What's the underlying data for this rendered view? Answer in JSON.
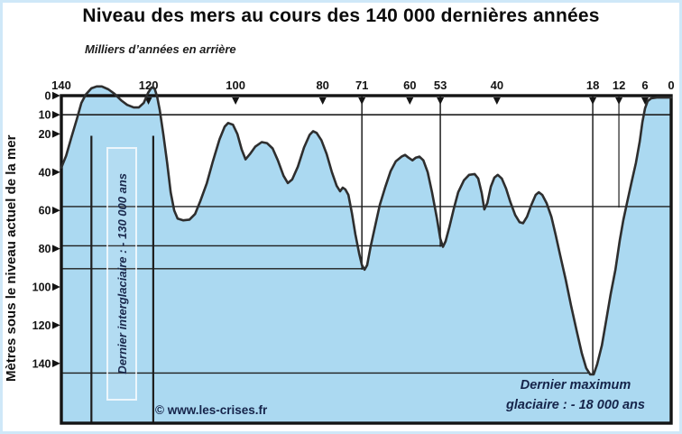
{
  "title": "Niveau des mers au cours des 140 000 dernières années",
  "axis_top": {
    "label": "Milliers d’années en arrière"
  },
  "axis_left": {
    "label": "Mètres sous le niveau actuel de la mer"
  },
  "annotations": {
    "interglacial": "Dernier interglaciaire : - 130 000 ans",
    "glacial_line1": "Dernier maximum",
    "glacial_line2": "glaciaire : - 18 000 ans",
    "copyright": "© www.les-crises.fr"
  },
  "colors": {
    "area_fill": "#abd9f1",
    "curve": "#2e2e2e",
    "frame": "#141414",
    "reference_line": "#1e1e1e",
    "tick": "#141414",
    "label": "#141414",
    "annotation_text": "#1b2a4e",
    "canvas_border": "#cfe8f8",
    "background": "#ffffff"
  },
  "chart_data": {
    "type": "area",
    "title": "Niveau des mers au cours des 140 000 dernières années",
    "xlabel": "Milliers d’années en arrière",
    "ylabel": "Mètres sous le niveau actuel de la mer",
    "x_unit": "milliers d'années avant le présent (ka)",
    "y_unit": "mètres par rapport au niveau actuel",
    "xlim": [
      140,
      0
    ],
    "ylim": [
      -171,
      9
    ],
    "legend": "none",
    "grid": "reference lines only",
    "x_ticks": [
      140,
      120,
      100,
      80,
      71,
      60,
      53,
      40,
      18,
      12,
      6,
      0
    ],
    "x_tick_marks": [
      120,
      100,
      80,
      71,
      60,
      53,
      40,
      18,
      12,
      6
    ],
    "y_ticks": [
      0,
      10,
      20,
      40,
      60,
      80,
      100,
      120,
      140
    ],
    "key_events": [
      {
        "name": "Dernier interglaciaire",
        "ka": 130,
        "level_m": 5
      },
      {
        "name": "Dernier maximum glaciaire",
        "ka": 18,
        "level_m": -145
      }
    ],
    "reference_lines_h": [
      {
        "depth": 10,
        "from_ka": 140,
        "to_ka": 0,
        "w": 1.6
      },
      {
        "depth": 58,
        "from_ka": 140,
        "to_ka": 0,
        "w": 1.4
      },
      {
        "depth": 78.5,
        "from_ka": 140,
        "to_ka": 52.4,
        "w": 1.4
      },
      {
        "depth": 90.5,
        "from_ka": 140,
        "to_ka": 70.4,
        "w": 1.4
      },
      {
        "depth": 145,
        "from_ka": 140,
        "to_ka": 18.6,
        "w": 1.4
      }
    ],
    "reference_lines_v": [
      {
        "ka": 133.1,
        "from_depth": 21,
        "to_depth": 171,
        "w": 2.2
      },
      {
        "ka": 118.9,
        "from_depth": 21,
        "to_depth": 171,
        "w": 2.2
      },
      {
        "ka": 71,
        "from_depth": 0,
        "to_depth": 91,
        "w": 1.5
      },
      {
        "ka": 53,
        "from_depth": 0,
        "to_depth": 79,
        "w": 1.5
      },
      {
        "ka": 18,
        "from_depth": 0,
        "to_depth": 145.7,
        "w": 1.5
      },
      {
        "ka": 12,
        "from_depth": 0,
        "to_depth": 58.5,
        "w": 1.2
      }
    ],
    "points": [
      [
        140,
        -37.6
      ],
      [
        138.9,
        -31.4
      ],
      [
        137.7,
        -21.9
      ],
      [
        136.4,
        -11.9
      ],
      [
        135.4,
        -3.8
      ],
      [
        134.4,
        0.5
      ],
      [
        133.1,
        3.8
      ],
      [
        131.9,
        4.8
      ],
      [
        130.7,
        4.8
      ],
      [
        129.2,
        3.3
      ],
      [
        127.8,
        1
      ],
      [
        126.3,
        -2.4
      ],
      [
        124.9,
        -4.8
      ],
      [
        123.4,
        -6.2
      ],
      [
        122.2,
        -6.2
      ],
      [
        121.1,
        -3.8
      ],
      [
        120.1,
        1.4
      ],
      [
        119.3,
        4.3
      ],
      [
        118.6,
        3.8
      ],
      [
        118,
        -0.5
      ],
      [
        117.4,
        -7.6
      ],
      [
        116.6,
        -20
      ],
      [
        115.7,
        -35.2
      ],
      [
        114.9,
        -50.5
      ],
      [
        114.1,
        -60
      ],
      [
        113.3,
        -64.3
      ],
      [
        112,
        -65.2
      ],
      [
        110.6,
        -64.8
      ],
      [
        109.3,
        -61.9
      ],
      [
        108.1,
        -55.2
      ],
      [
        106.6,
        -45.7
      ],
      [
        105.2,
        -34.3
      ],
      [
        103.7,
        -22.9
      ],
      [
        102.5,
        -16.2
      ],
      [
        101.7,
        -14.3
      ],
      [
        100.6,
        -15.2
      ],
      [
        99.6,
        -20
      ],
      [
        98.6,
        -28.1
      ],
      [
        97.7,
        -33.3
      ],
      [
        96.7,
        -30.5
      ],
      [
        95.5,
        -26.7
      ],
      [
        94,
        -24.3
      ],
      [
        92.8,
        -24.8
      ],
      [
        91.5,
        -27.6
      ],
      [
        90.3,
        -33.8
      ],
      [
        89,
        -41.9
      ],
      [
        88,
        -45.7
      ],
      [
        87,
        -43.8
      ],
      [
        85.7,
        -37.1
      ],
      [
        84.3,
        -27.1
      ],
      [
        83,
        -20.5
      ],
      [
        82.2,
        -18.6
      ],
      [
        81.4,
        -19.5
      ],
      [
        80.3,
        -23.3
      ],
      [
        79.1,
        -30.5
      ],
      [
        77.9,
        -40
      ],
      [
        76.8,
        -47.1
      ],
      [
        76,
        -50
      ],
      [
        75.4,
        -48.1
      ],
      [
        74.8,
        -49
      ],
      [
        74.1,
        -51.9
      ],
      [
        73.3,
        -61.4
      ],
      [
        72.5,
        -72.4
      ],
      [
        71.6,
        -82.9
      ],
      [
        71,
        -88.6
      ],
      [
        70.4,
        -91
      ],
      [
        69.8,
        -88.6
      ],
      [
        69,
        -79
      ],
      [
        67.9,
        -67.6
      ],
      [
        66.9,
        -57.1
      ],
      [
        65.6,
        -47.6
      ],
      [
        64.4,
        -39.5
      ],
      [
        63.2,
        -34.3
      ],
      [
        61.9,
        -31.9
      ],
      [
        61.1,
        -31
      ],
      [
        60.3,
        -32.4
      ],
      [
        59.4,
        -33.8
      ],
      [
        58.6,
        -32.4
      ],
      [
        57.8,
        -31.9
      ],
      [
        56.9,
        -33.8
      ],
      [
        55.9,
        -40
      ],
      [
        54.9,
        -50.5
      ],
      [
        53.8,
        -63.8
      ],
      [
        53,
        -74.8
      ],
      [
        52.4,
        -79
      ],
      [
        51.8,
        -76.2
      ],
      [
        50.9,
        -68.6
      ],
      [
        49.9,
        -59
      ],
      [
        48.9,
        -50.5
      ],
      [
        47.6,
        -44.3
      ],
      [
        46.4,
        -41.4
      ],
      [
        45.1,
        -41
      ],
      [
        44.3,
        -43.3
      ],
      [
        43.5,
        -51
      ],
      [
        42.9,
        -59.5
      ],
      [
        42.2,
        -56.2
      ],
      [
        41.4,
        -47.6
      ],
      [
        40.6,
        -42.9
      ],
      [
        39.8,
        -41.4
      ],
      [
        38.9,
        -43.3
      ],
      [
        37.9,
        -48.6
      ],
      [
        36.9,
        -55.7
      ],
      [
        35.8,
        -62.4
      ],
      [
        34.8,
        -66.2
      ],
      [
        34,
        -66.7
      ],
      [
        33.1,
        -63.3
      ],
      [
        32.1,
        -57.1
      ],
      [
        31.1,
        -51.9
      ],
      [
        30.4,
        -50.5
      ],
      [
        29.6,
        -51.9
      ],
      [
        28.6,
        -56.2
      ],
      [
        27.5,
        -63.3
      ],
      [
        26.5,
        -72.9
      ],
      [
        25.5,
        -83.3
      ],
      [
        24.2,
        -96.2
      ],
      [
        23,
        -109.5
      ],
      [
        21.7,
        -122.9
      ],
      [
        20.5,
        -134.8
      ],
      [
        19.5,
        -142.4
      ],
      [
        18.6,
        -145.7
      ],
      [
        17.8,
        -145.7
      ],
      [
        17,
        -140.5
      ],
      [
        15.9,
        -130.5
      ],
      [
        14.9,
        -117.1
      ],
      [
        13.9,
        -103.8
      ],
      [
        12.8,
        -91
      ],
      [
        11.8,
        -75.7
      ],
      [
        11,
        -65.2
      ],
      [
        10.1,
        -55.7
      ],
      [
        9.1,
        -45.2
      ],
      [
        8.1,
        -35.2
      ],
      [
        7.2,
        -23.8
      ],
      [
        6.6,
        -13.8
      ],
      [
        6,
        -6.7
      ],
      [
        5.4,
        -2.9
      ],
      [
        4.6,
        -1.4
      ],
      [
        3.3,
        -1
      ],
      [
        1.7,
        -1
      ],
      [
        0,
        -1
      ]
    ]
  }
}
